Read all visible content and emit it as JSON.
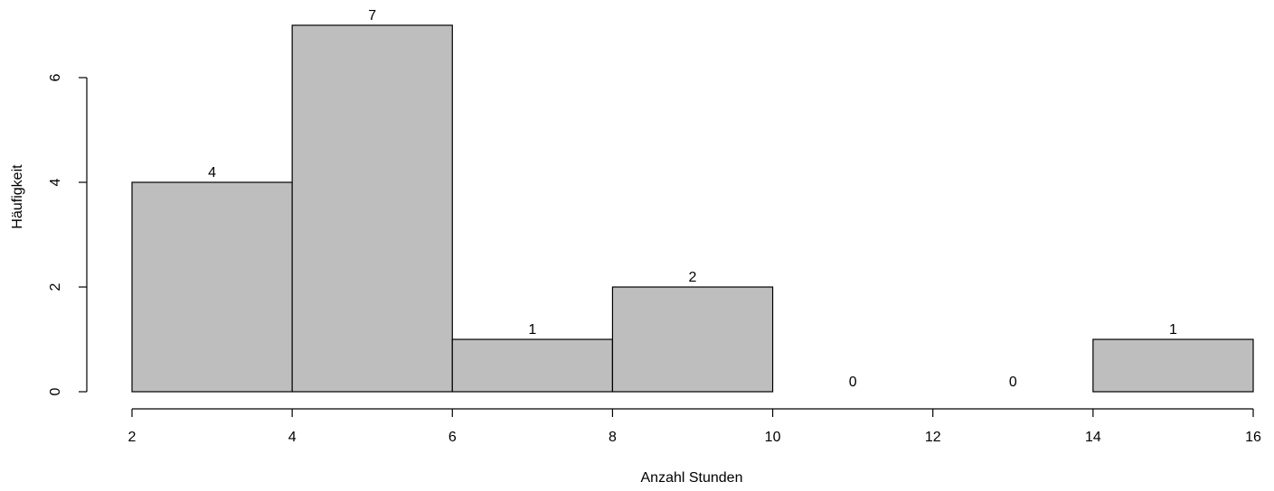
{
  "chart_data": {
    "type": "bar",
    "bins": [
      [
        2,
        4
      ],
      [
        4,
        6
      ],
      [
        6,
        8
      ],
      [
        8,
        10
      ],
      [
        10,
        12
      ],
      [
        12,
        14
      ],
      [
        14,
        16
      ]
    ],
    "values": [
      4,
      7,
      1,
      2,
      0,
      0,
      1
    ],
    "data_labels": [
      "4",
      "7",
      "1",
      "2",
      "0",
      "0",
      "1"
    ],
    "xlabel": "Anzahl Stunden",
    "ylabel": "Häufigkeit",
    "xlim": [
      2,
      16
    ],
    "ylim": [
      0,
      7
    ],
    "x_ticks": [
      2,
      4,
      6,
      8,
      10,
      12,
      14,
      16
    ],
    "x_tick_labels": [
      "2",
      "4",
      "6",
      "8",
      "10",
      "12",
      "14",
      "16"
    ],
    "y_ticks": [
      0,
      2,
      4,
      6
    ],
    "y_tick_labels": [
      "0",
      "2",
      "4",
      "6"
    ],
    "bar_color": "#bebebe",
    "grid": false,
    "legend": "none"
  }
}
